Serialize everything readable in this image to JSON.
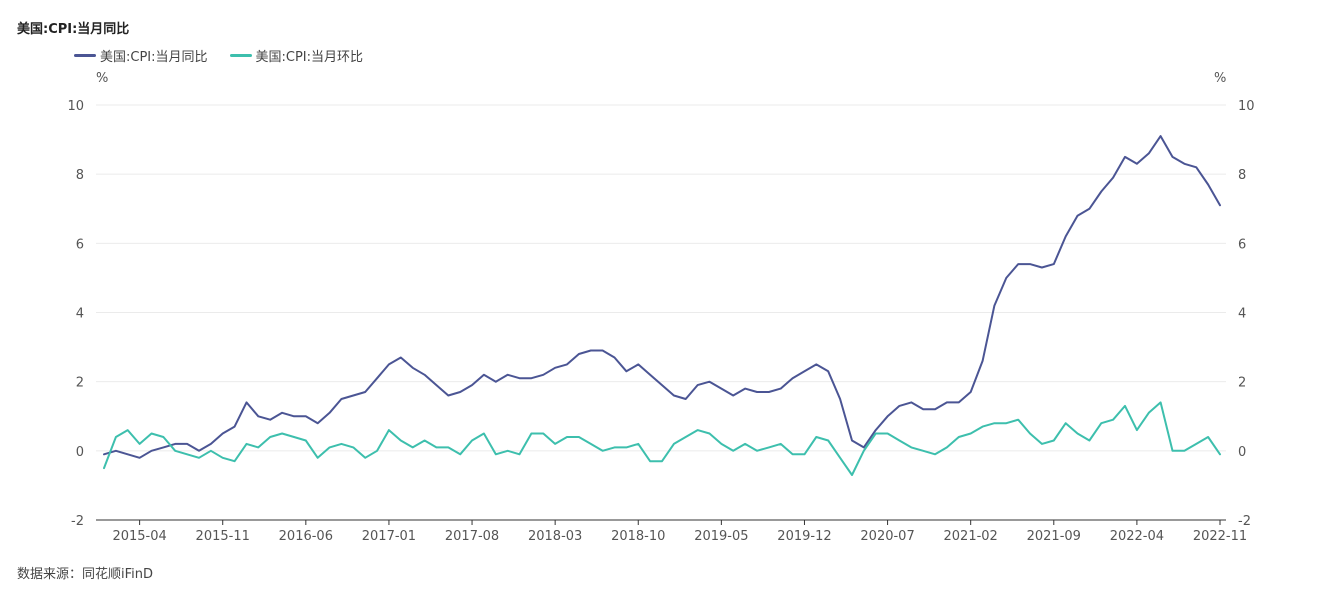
{
  "title": "美国:CPI:当月同比",
  "source": "数据来源：同花顺iFinD",
  "chart_data": {
    "type": "line",
    "left_unit": "%",
    "right_unit": "%",
    "ylim": [
      -2,
      10
    ],
    "yticks": [
      -2,
      0,
      2,
      4,
      6,
      8,
      10
    ],
    "grid": true,
    "legend_position": "top-left",
    "x_start": "2015-01",
    "x_end": "2022-11",
    "x_tick_labels": [
      "2015-04",
      "2015-11",
      "2016-06",
      "2017-01",
      "2017-08",
      "2018-03",
      "2018-10",
      "2019-05",
      "2019-12",
      "2020-07",
      "2021-02",
      "2021-09",
      "2022-04",
      "2022-11"
    ],
    "series": [
      {
        "name": "美国:CPI:当月同比",
        "color": "#4b5594",
        "values": [
          -0.1,
          0.0,
          -0.1,
          -0.2,
          0.0,
          0.1,
          0.2,
          0.2,
          0.0,
          0.2,
          0.5,
          0.7,
          1.4,
          1.0,
          0.9,
          1.1,
          1.0,
          1.0,
          0.8,
          1.1,
          1.5,
          1.6,
          1.7,
          2.1,
          2.5,
          2.7,
          2.4,
          2.2,
          1.9,
          1.6,
          1.7,
          1.9,
          2.2,
          2.0,
          2.2,
          2.1,
          2.1,
          2.2,
          2.4,
          2.5,
          2.8,
          2.9,
          2.9,
          2.7,
          2.3,
          2.5,
          2.2,
          1.9,
          1.6,
          1.5,
          1.9,
          2.0,
          1.8,
          1.6,
          1.8,
          1.7,
          1.7,
          1.8,
          2.1,
          2.3,
          2.5,
          2.3,
          1.5,
          0.3,
          0.1,
          0.6,
          1.0,
          1.3,
          1.4,
          1.2,
          1.2,
          1.4,
          1.4,
          1.7,
          2.6,
          4.2,
          5.0,
          5.4,
          5.4,
          5.3,
          5.4,
          6.2,
          6.8,
          7.0,
          7.5,
          7.9,
          8.5,
          8.3,
          8.6,
          9.1,
          8.5,
          8.3,
          8.2,
          7.7,
          7.1
        ]
      },
      {
        "name": "美国:CPI:当月环比",
        "color": "#3dbfad",
        "values": [
          -0.5,
          0.4,
          0.6,
          0.2,
          0.5,
          0.4,
          0.0,
          -0.1,
          -0.2,
          0.0,
          -0.2,
          -0.3,
          0.2,
          0.1,
          0.4,
          0.5,
          0.4,
          0.3,
          -0.2,
          0.1,
          0.2,
          0.1,
          -0.2,
          0.0,
          0.6,
          0.3,
          0.1,
          0.3,
          0.1,
          0.1,
          -0.1,
          0.3,
          0.5,
          -0.1,
          0.0,
          -0.1,
          0.5,
          0.5,
          0.2,
          0.4,
          0.4,
          0.2,
          0.0,
          0.1,
          0.1,
          0.2,
          -0.3,
          -0.3,
          0.2,
          0.4,
          0.6,
          0.5,
          0.2,
          0.0,
          0.2,
          0.0,
          0.1,
          0.2,
          -0.1,
          -0.1,
          0.4,
          0.3,
          -0.2,
          -0.7,
          0.0,
          0.5,
          0.5,
          0.3,
          0.1,
          0.0,
          -0.1,
          0.1,
          0.4,
          0.5,
          0.7,
          0.8,
          0.8,
          0.9,
          0.5,
          0.2,
          0.3,
          0.8,
          0.5,
          0.3,
          0.8,
          0.9,
          1.3,
          0.6,
          1.1,
          1.4,
          0.0,
          0.0,
          0.2,
          0.4,
          -0.1
        ]
      }
    ]
  }
}
